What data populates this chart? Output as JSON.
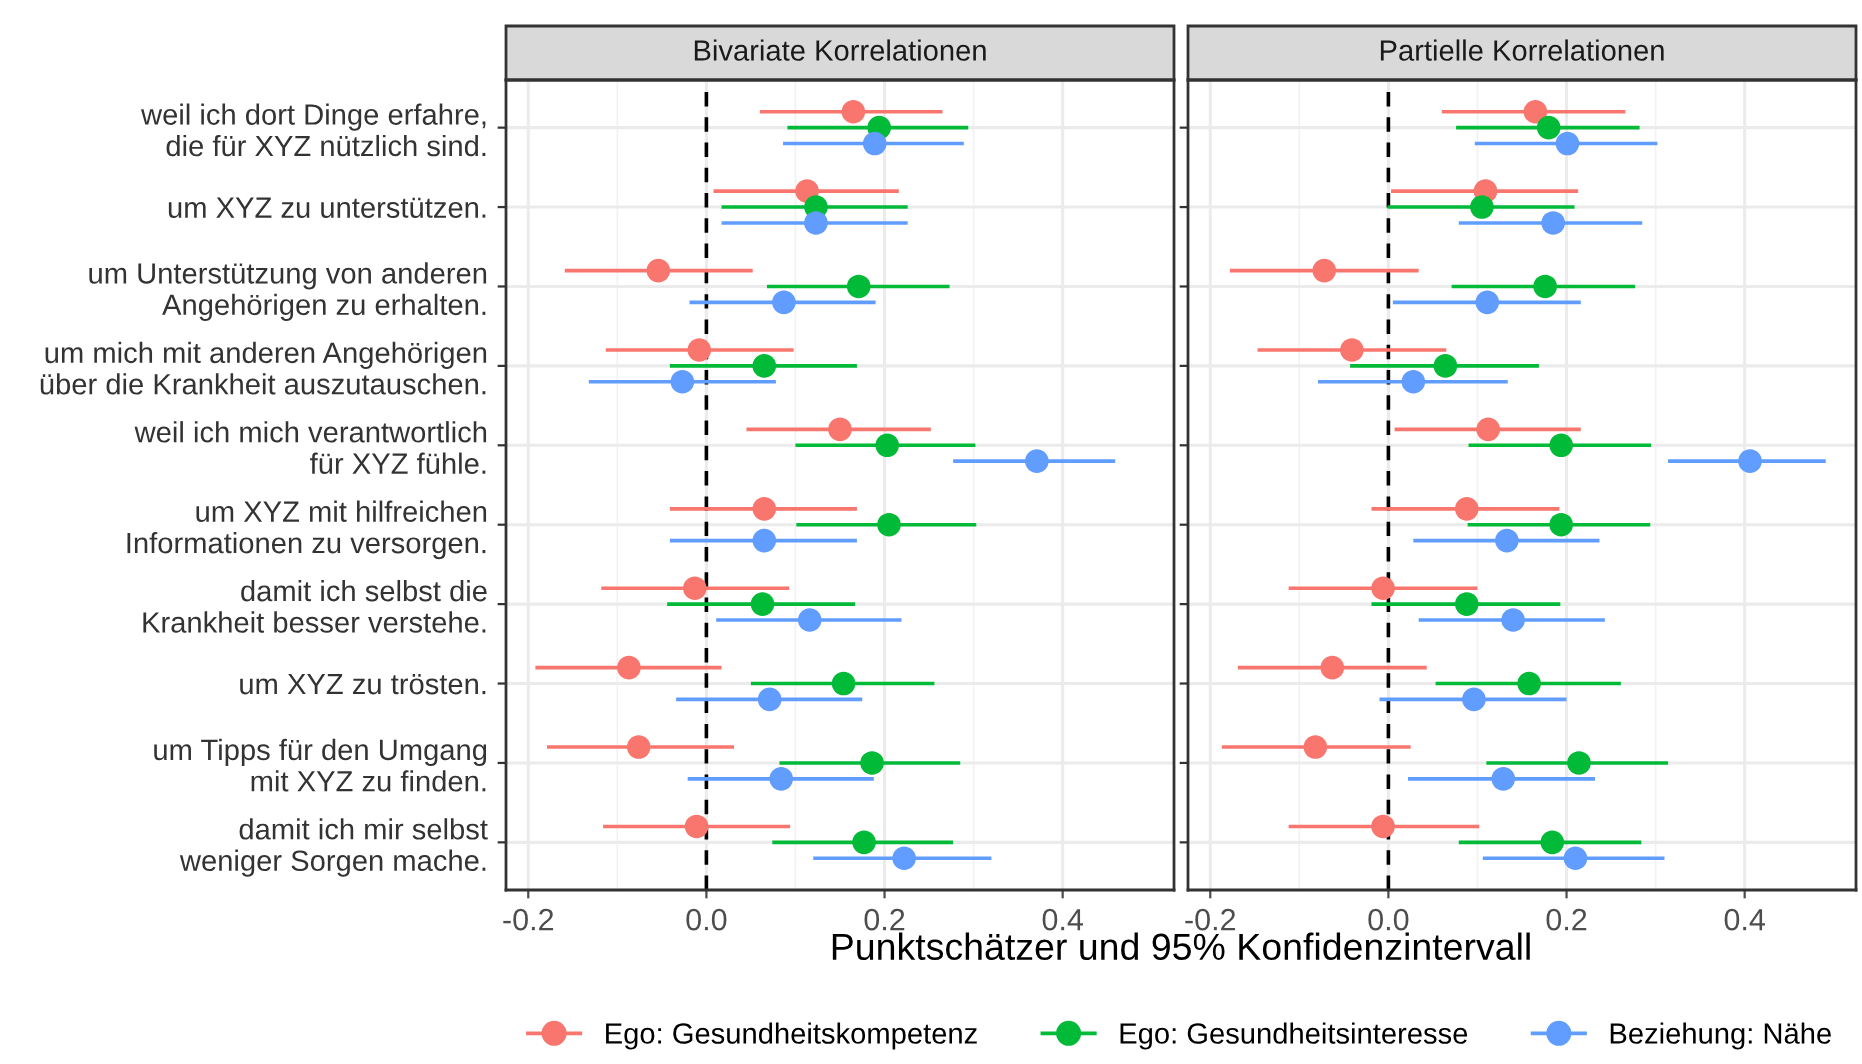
{
  "chart_data": [
    {
      "type": "scatter",
      "title": "Bivariate Korrelationen",
      "xlabel": "Punktschätzer und 95% Konfidenzintervall",
      "orientation": "horizontal",
      "categories": [
        "weil ich dort Dinge erfahre,\ndie für XYZ nützlich sind.",
        "um XYZ zu unterstützen.",
        "um Unterstützung von anderen\nAngehörigen zu erhalten.",
        "um mich mit anderen Angehörigen\nüber die Krankheit auszutauschen.",
        "weil ich mich verantwortlich\nfür XYZ fühle.",
        "um XYZ mit hilfreichen\nInformationen zu versorgen.",
        "damit ich selbst die\nKrankheit besser verstehe.",
        "um XYZ zu trösten.",
        "um Tipps für den Umgang\nmit XYZ zu finden.",
        "damit ich mir selbst\nweniger Sorgen mache."
      ],
      "xlim": [
        -0.225,
        0.525
      ],
      "xticks": [
        {
          "value": -0.2,
          "label": "-0.2"
        },
        {
          "value": 0,
          "label": "0.0"
        },
        {
          "value": 0.2,
          "label": "0.2"
        },
        {
          "value": 0.4,
          "label": "0.4"
        }
      ],
      "ref_lines": [
        {
          "axis": "x",
          "value": 0,
          "line_style": "dashed",
          "color": "#000000"
        }
      ],
      "grid": true,
      "marker": "circle",
      "legend": "bottom",
      "series": [
        {
          "name": "Ego: Gesundheitskompetenz",
          "color": "#f8766d",
          "values": [
            0.165,
            0.113,
            -0.054,
            -0.008,
            0.15,
            0.065,
            -0.013,
            -0.087,
            -0.076,
            -0.011
          ],
          "errors": [
            [
              0.06,
              0.265
            ],
            [
              0.008,
              0.216
            ],
            [
              -0.159,
              0.052
            ],
            [
              -0.113,
              0.098
            ],
            [
              0.045,
              0.252
            ],
            [
              -0.041,
              0.169
            ],
            [
              -0.118,
              0.093
            ],
            [
              -0.192,
              0.017
            ],
            [
              -0.179,
              0.031
            ],
            [
              -0.116,
              0.094
            ]
          ]
        },
        {
          "name": "Ego: Gesundheitsinteresse",
          "color": "#00ba38",
          "values": [
            0.194,
            0.123,
            0.171,
            0.065,
            0.203,
            0.205,
            0.063,
            0.154,
            0.186,
            0.177
          ],
          "errors": [
            [
              0.091,
              0.294
            ],
            [
              0.017,
              0.226
            ],
            [
              0.068,
              0.273
            ],
            [
              -0.041,
              0.169
            ],
            [
              0.1,
              0.302
            ],
            [
              0.101,
              0.303
            ],
            [
              -0.044,
              0.167
            ],
            [
              0.05,
              0.256
            ],
            [
              0.082,
              0.285
            ],
            [
              0.074,
              0.277
            ]
          ]
        },
        {
          "name": "Beziehung: Nähe",
          "color": "#619cff",
          "values": [
            0.189,
            0.123,
            0.087,
            -0.027,
            0.371,
            0.065,
            0.116,
            0.071,
            0.084,
            0.222
          ],
          "errors": [
            [
              0.086,
              0.289
            ],
            [
              0.017,
              0.226
            ],
            [
              -0.019,
              0.19
            ],
            [
              -0.132,
              0.078
            ],
            [
              0.277,
              0.459
            ],
            [
              -0.041,
              0.169
            ],
            [
              0.011,
              0.219
            ],
            [
              -0.034,
              0.175
            ],
            [
              -0.021,
              0.188
            ],
            [
              0.12,
              0.32
            ]
          ]
        }
      ]
    },
    {
      "type": "scatter",
      "title": "Partielle Korrelationen",
      "orientation": "horizontal",
      "tick_labels": "x",
      "categories": [
        null,
        null,
        null,
        null,
        null,
        null,
        null,
        null,
        null,
        null
      ],
      "xlim": [
        -0.225,
        0.525
      ],
      "xticks": [
        {
          "value": -0.2,
          "label": "-0.2"
        },
        {
          "value": 0,
          "label": "0.0"
        },
        {
          "value": 0.2,
          "label": "0.2"
        },
        {
          "value": 0.4,
          "label": "0.4"
        }
      ],
      "ref_lines": [
        {
          "axis": "x",
          "value": 0,
          "line_style": "dashed",
          "color": "#000000"
        }
      ],
      "grid": true,
      "marker": "circle",
      "series": [
        {
          "name": "Ego: Gesundheitskompetenz",
          "color": "#f8766d",
          "values": [
            0.165,
            0.109,
            -0.072,
            -0.041,
            0.112,
            0.088,
            -0.006,
            -0.063,
            -0.082,
            -0.006
          ],
          "errors": [
            [
              0.06,
              0.266
            ],
            [
              0.003,
              0.213
            ],
            [
              -0.178,
              0.034
            ],
            [
              -0.147,
              0.065
            ],
            [
              0.007,
              0.216
            ],
            [
              -0.019,
              0.192
            ],
            [
              -0.112,
              0.1
            ],
            [
              -0.169,
              0.043
            ],
            [
              -0.187,
              0.025
            ],
            [
              -0.112,
              0.102
            ]
          ]
        },
        {
          "name": "Ego: Gesundheitsinteresse",
          "color": "#00ba38",
          "values": [
            0.18,
            0.105,
            0.176,
            0.064,
            0.194,
            0.194,
            0.088,
            0.158,
            0.214,
            0.184
          ],
          "errors": [
            [
              0.076,
              0.282
            ],
            [
              -0.001,
              0.209
            ],
            [
              0.071,
              0.277
            ],
            [
              -0.043,
              0.169
            ],
            [
              0.09,
              0.295
            ],
            [
              0.089,
              0.294
            ],
            [
              -0.019,
              0.193
            ],
            [
              0.053,
              0.261
            ],
            [
              0.11,
              0.314
            ],
            [
              0.079,
              0.284
            ]
          ]
        },
        {
          "name": "Beziehung: Nähe",
          "color": "#619cff",
          "values": [
            0.201,
            0.185,
            0.111,
            0.028,
            0.406,
            0.133,
            0.14,
            0.096,
            0.129,
            0.21
          ],
          "errors": [
            [
              0.097,
              0.302
            ],
            [
              0.079,
              0.285
            ],
            [
              0.005,
              0.216
            ],
            [
              -0.079,
              0.134
            ],
            [
              0.314,
              0.491
            ],
            [
              0.028,
              0.237
            ],
            [
              0.034,
              0.243
            ],
            [
              -0.01,
              0.2
            ],
            [
              0.022,
              0.232
            ],
            [
              0.106,
              0.31
            ]
          ]
        }
      ]
    }
  ]
}
